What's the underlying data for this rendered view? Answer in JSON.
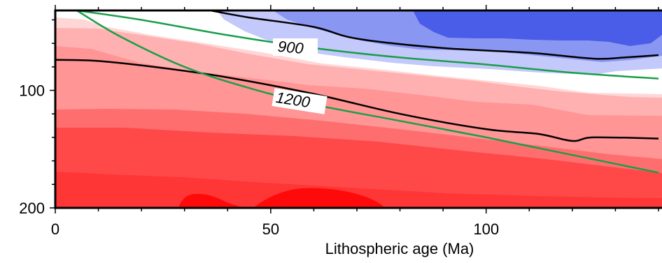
{
  "chart_data": {
    "type": "heatmap",
    "title": "",
    "xlabel": "Lithospheric age (Ma)",
    "ylabel": "",
    "xlim": [
      0,
      140
    ],
    "ylim_depth_km": [
      200,
      32
    ],
    "x_ticks": [
      0,
      50,
      100
    ],
    "x_tick_labels": [
      "0",
      "50",
      "100"
    ],
    "y_ticks": [
      100,
      200
    ],
    "y_tick_labels": [
      "100",
      "200"
    ],
    "color_bands": [
      {
        "band": "blue-darkest",
        "color": "#4a5de8"
      },
      {
        "band": "blue-dark",
        "color": "#8a97f2"
      },
      {
        "band": "blue-light",
        "color": "#c3c9fa"
      },
      {
        "band": "white",
        "color": "#ffffff"
      },
      {
        "band": "pink-lightest",
        "color": "#ffd6d6"
      },
      {
        "band": "pink-light",
        "color": "#ffb0b0"
      },
      {
        "band": "red-medium-light",
        "color": "#ff9595"
      },
      {
        "band": "red-medium",
        "color": "#ff6e6e"
      },
      {
        "band": "red",
        "color": "#ff4949"
      },
      {
        "band": "red-strong",
        "color": "#ff3636"
      },
      {
        "band": "red-deep",
        "color": "#ff0a0a"
      }
    ],
    "isotherm_labels": [
      "900",
      "1200"
    ],
    "model_isotherms": [
      {
        "label": "900",
        "color": "#1a9e4a",
        "age": [
          5,
          20,
          40,
          60,
          80,
          100,
          120,
          140
        ],
        "depth": [
          32,
          40,
          53,
          64,
          72,
          78,
          85,
          90
        ]
      },
      {
        "label": "1200",
        "color": "#1a9e4a",
        "age": [
          5,
          15,
          30,
          45,
          60,
          80,
          100,
          120,
          140
        ],
        "depth": [
          32,
          54,
          80,
          98,
          112,
          126,
          140,
          155,
          170
        ]
      }
    ],
    "observed_contours": [
      {
        "color": "#000000",
        "age": [
          36,
          45,
          60,
          70,
          90,
          110,
          125,
          132,
          140
        ],
        "depth": [
          32,
          38,
          46,
          56,
          64,
          68,
          73,
          72,
          70
        ]
      },
      {
        "color": "#000000",
        "age": [
          0,
          10,
          25,
          40,
          60,
          80,
          100,
          112,
          120,
          125,
          140
        ],
        "depth": [
          74,
          75,
          81,
          89,
          103,
          120,
          133,
          137,
          143,
          140,
          141
        ]
      }
    ]
  }
}
